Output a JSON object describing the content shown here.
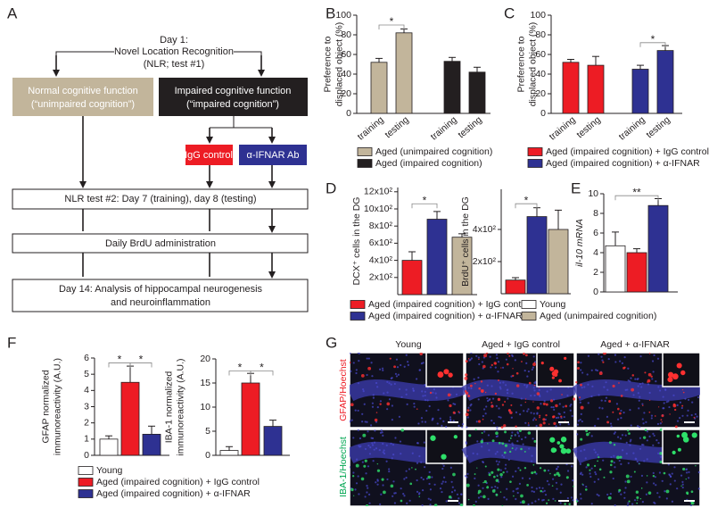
{
  "panel_labels": [
    "A",
    "B",
    "C",
    "D",
    "E",
    "F",
    "G"
  ],
  "flowchart": {
    "day1": [
      "Day 1:",
      "Novel Location Recognition",
      "(NLR; test #1)"
    ],
    "normal": [
      "Normal cognitive function",
      "(“unimpaired cognition”)"
    ],
    "impaired": [
      "Impaired cognitive function",
      "(“impaired cognition”)"
    ],
    "igg": "IgG control",
    "ifnar": "α-IFNAR Ab",
    "test2": "NLR test #2: Day 7 (training), day 8 (testing)",
    "brdu": "Daily BrdU administration",
    "day14": [
      "Day 14: Analysis of hippocampal neurogenesis",
      "and neuroinflammation"
    ]
  },
  "chart_data": [
    {
      "type": "bar",
      "ylabel": [
        "Preference to",
        "displaced object (%)"
      ],
      "categories": [
        "training",
        "testing",
        "training",
        "testing"
      ],
      "ylim": [
        0,
        100
      ],
      "yticks": [
        0,
        20,
        40,
        60,
        80,
        100
      ],
      "annotations": [
        "*"
      ],
      "series": [
        {
          "name": "Aged (unimpaired cognition)",
          "color": "#c2b59b",
          "values": [
            52,
            82,
            null,
            null
          ],
          "errors": [
            4,
            4,
            null,
            null
          ]
        },
        {
          "name": "Aged (impaired cognition)",
          "color": "#231f20",
          "values": [
            null,
            null,
            53,
            42
          ],
          "errors": [
            null,
            null,
            4,
            5
          ]
        }
      ]
    },
    {
      "type": "bar",
      "ylabel": [
        "Preference to",
        "displaced object (%)"
      ],
      "categories": [
        "training",
        "testing",
        "training",
        "testing"
      ],
      "ylim": [
        0,
        100
      ],
      "yticks": [
        0,
        20,
        40,
        60,
        80,
        100
      ],
      "annotations": [
        "*"
      ],
      "series": [
        {
          "name": "Aged (impaired cognition) + IgG control",
          "color": "#ed1c24",
          "values": [
            52,
            49,
            null,
            null
          ],
          "errors": [
            3,
            9,
            null,
            null
          ]
        },
        {
          "name": "Aged (impaired cognition) + α-IFNAR",
          "color": "#2e3192",
          "values": [
            null,
            null,
            45,
            64
          ],
          "errors": [
            null,
            null,
            4,
            5
          ]
        }
      ]
    },
    {
      "type": "bar",
      "ylabel": [
        "DCX⁺ cells in the DG"
      ],
      "ylim": [
        0,
        1250
      ],
      "yticks": [
        {
          "value": 200,
          "label": "2x10²"
        },
        {
          "value": 400,
          "label": "4x10²"
        },
        {
          "value": 600,
          "label": "6x10²"
        },
        {
          "value": 800,
          "label": "8x10²"
        },
        {
          "value": 1000,
          "label": "10x10²"
        },
        {
          "value": 1200,
          "label": "12x10²"
        }
      ],
      "annotations": [
        "*"
      ],
      "series": [
        {
          "name": "Aged (impaired cognition) + IgG control",
          "color": "#ed1c24",
          "values": [
            400
          ],
          "errors": [
            100
          ]
        },
        {
          "name": "Aged (impaired cognition) + α-IFNAR",
          "color": "#2e3192",
          "values": [
            880
          ],
          "errors": [
            90
          ]
        },
        {
          "name": "Aged (unimpaired cognition)",
          "color": "#c2b59b",
          "values": [
            670
          ],
          "errors": [
            40
          ]
        }
      ]
    },
    {
      "type": "bar",
      "ylabel": [
        "BrdU⁺ cells in the DG"
      ],
      "ylim": [
        0,
        650
      ],
      "yticks": [
        {
          "value": 200,
          "label": "2x10²"
        },
        {
          "value": 400,
          "label": "4x10²"
        }
      ],
      "annotations": [
        "*"
      ],
      "series": [
        {
          "color": "#ed1c24",
          "values": [
            85
          ],
          "errors": [
            15
          ]
        },
        {
          "color": "#2e3192",
          "values": [
            480
          ],
          "errors": [
            55
          ]
        },
        {
          "color": "#c2b59b",
          "values": [
            400
          ],
          "errors": [
            120
          ]
        }
      ]
    },
    {
      "type": "bar",
      "ylabel": [
        "il-10 mRNA"
      ],
      "ylim": [
        0,
        10
      ],
      "yticks": [
        0,
        2,
        4,
        6,
        8,
        10
      ],
      "annotations": [
        "**"
      ],
      "series": [
        {
          "name": "Young",
          "color": "#ffffff",
          "values": [
            4.7
          ],
          "errors": [
            1.4
          ]
        },
        {
          "color": "#ed1c24",
          "values": [
            4.0
          ],
          "errors": [
            0.4
          ]
        },
        {
          "color": "#2e3192",
          "values": [
            8.8
          ],
          "errors": [
            0.7
          ]
        }
      ]
    },
    {
      "type": "bar",
      "ylabel": [
        "GFAP normalized",
        "immunoreactivity (A.U.)"
      ],
      "ylim": [
        0,
        6
      ],
      "yticks": [
        0,
        1,
        2,
        3,
        4,
        5,
        6
      ],
      "annotations": [
        "*",
        "*"
      ],
      "series": [
        {
          "name": "Young",
          "color": "#ffffff",
          "values": [
            1.0
          ],
          "errors": [
            0.2
          ]
        },
        {
          "name": "Aged (impaired cognition) + IgG control",
          "color": "#ed1c24",
          "values": [
            4.5
          ],
          "errors": [
            1.0
          ]
        },
        {
          "name": "Aged (impaired cognition) + α-IFNAR",
          "color": "#2e3192",
          "values": [
            1.3
          ],
          "errors": [
            0.5
          ]
        }
      ]
    },
    {
      "type": "bar",
      "ylabel": [
        "IBA-1 normalized",
        "immunoreactivity (A.U.)"
      ],
      "ylim": [
        0,
        20
      ],
      "yticks": [
        0,
        5,
        10,
        15,
        20
      ],
      "annotations": [
        "*",
        "*"
      ],
      "series": [
        {
          "color": "#ffffff",
          "values": [
            1
          ],
          "errors": [
            0.8
          ]
        },
        {
          "color": "#ed1c24",
          "values": [
            15
          ],
          "errors": [
            2
          ]
        },
        {
          "color": "#2e3192",
          "values": [
            6
          ],
          "errors": [
            1.3
          ]
        }
      ]
    }
  ],
  "micrographs": {
    "columns": [
      "Young",
      "Aged + IgG control",
      "Aged + α-IFNAR"
    ],
    "rows": [
      "GFAP/Hoechst",
      "IBA-1/Hoechst"
    ]
  }
}
